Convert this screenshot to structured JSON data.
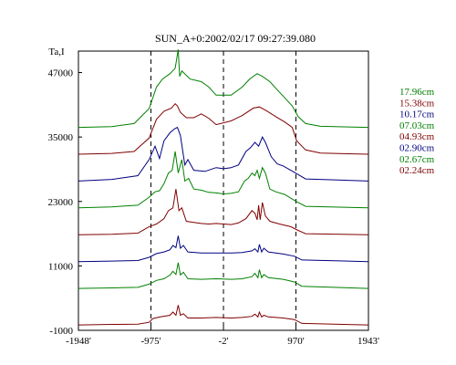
{
  "chart_data": {
    "type": "line",
    "title": "SUN_A+0:2002/02/17 09:27:39.080",
    "ylabel": "Ta,I",
    "xlim": [
      -1948,
      1943
    ],
    "ylim": [
      -1000,
      51000
    ],
    "x_ticks": [
      "-1948'",
      "-975'",
      "-2'",
      "970'",
      "1943'"
    ],
    "x_tick_values": [
      -1948,
      -975,
      -2,
      970,
      1943
    ],
    "y_ticks": [
      "47000",
      "35000",
      "23000",
      "11000",
      "-1000"
    ],
    "y_tick_values": [
      47000,
      35000,
      23000,
      11000,
      -1000
    ],
    "dashed_lines_x": [
      -975,
      -2,
      970
    ],
    "grid": false,
    "legend_placement": "right",
    "series": [
      {
        "name": "17.96cm",
        "color": "#008000",
        "base": 36800,
        "points": [
          [
            -1948,
            0
          ],
          [
            -1500,
            150
          ],
          [
            -1200,
            700
          ],
          [
            -1000,
            3500
          ],
          [
            -900,
            7500
          ],
          [
            -820,
            9000
          ],
          [
            -720,
            10000
          ],
          [
            -650,
            11000
          ],
          [
            -610,
            14500
          ],
          [
            -590,
            9500
          ],
          [
            -560,
            10500
          ],
          [
            -450,
            9000
          ],
          [
            -300,
            8500
          ],
          [
            -200,
            7500
          ],
          [
            -100,
            6000
          ],
          [
            100,
            6000
          ],
          [
            250,
            7500
          ],
          [
            350,
            9000
          ],
          [
            450,
            10000
          ],
          [
            520,
            9500
          ],
          [
            620,
            8500
          ],
          [
            720,
            7000
          ],
          [
            820,
            5500
          ],
          [
            920,
            4000
          ],
          [
            1000,
            2000
          ],
          [
            1100,
            700
          ],
          [
            1300,
            200
          ],
          [
            1943,
            0
          ]
        ]
      },
      {
        "name": "15.38cm",
        "color": "#800000",
        "base": 31800,
        "points": [
          [
            -1948,
            0
          ],
          [
            -1500,
            150
          ],
          [
            -1200,
            500
          ],
          [
            -1000,
            3000
          ],
          [
            -900,
            6500
          ],
          [
            -800,
            8000
          ],
          [
            -700,
            8600
          ],
          [
            -650,
            9400
          ],
          [
            -620,
            9000
          ],
          [
            -580,
            7800
          ],
          [
            -500,
            6800
          ],
          [
            -400,
            6800
          ],
          [
            -300,
            7500
          ],
          [
            -200,
            6700
          ],
          [
            -100,
            5500
          ],
          [
            100,
            6200
          ],
          [
            250,
            7200
          ],
          [
            400,
            8600
          ],
          [
            480,
            8800
          ],
          [
            560,
            8200
          ],
          [
            700,
            7000
          ],
          [
            820,
            6000
          ],
          [
            920,
            5000
          ],
          [
            980,
            2500
          ],
          [
            1100,
            800
          ],
          [
            1300,
            200
          ],
          [
            1943,
            0
          ]
        ]
      },
      {
        "name": "10.17cm",
        "color": "#000080",
        "base": 26800,
        "points": [
          [
            -1948,
            0
          ],
          [
            -1500,
            300
          ],
          [
            -1150,
            1000
          ],
          [
            -1000,
            4000
          ],
          [
            -920,
            6500
          ],
          [
            -860,
            4200
          ],
          [
            -800,
            7500
          ],
          [
            -720,
            9000
          ],
          [
            -660,
            9700
          ],
          [
            -620,
            10000
          ],
          [
            -580,
            8500
          ],
          [
            -520,
            3000
          ],
          [
            -480,
            4000
          ],
          [
            -400,
            2000
          ],
          [
            -250,
            1800
          ],
          [
            -100,
            2500
          ],
          [
            0,
            2300
          ],
          [
            100,
            2500
          ],
          [
            200,
            3000
          ],
          [
            300,
            5500
          ],
          [
            360,
            6200
          ],
          [
            420,
            7200
          ],
          [
            470,
            6500
          ],
          [
            520,
            8200
          ],
          [
            560,
            7200
          ],
          [
            640,
            4500
          ],
          [
            720,
            3200
          ],
          [
            800,
            2800
          ],
          [
            900,
            2000
          ],
          [
            1000,
            1200
          ],
          [
            1100,
            400
          ],
          [
            1943,
            0
          ]
        ]
      },
      {
        "name": "07.03cm",
        "color": "#008000",
        "base": 21800,
        "points": [
          [
            -1948,
            0
          ],
          [
            -1500,
            200
          ],
          [
            -1150,
            500
          ],
          [
            -1000,
            2000
          ],
          [
            -920,
            3000
          ],
          [
            -860,
            3200
          ],
          [
            -800,
            4500
          ],
          [
            -740,
            6500
          ],
          [
            -690,
            7000
          ],
          [
            -650,
            10500
          ],
          [
            -610,
            6500
          ],
          [
            -560,
            9000
          ],
          [
            -520,
            5000
          ],
          [
            -470,
            5500
          ],
          [
            -400,
            3500
          ],
          [
            -300,
            3300
          ],
          [
            -200,
            2900
          ],
          [
            -100,
            2800
          ],
          [
            0,
            2600
          ],
          [
            100,
            2700
          ],
          [
            200,
            3000
          ],
          [
            280,
            5000
          ],
          [
            330,
            5500
          ],
          [
            380,
            6500
          ],
          [
            420,
            6000
          ],
          [
            450,
            7000
          ],
          [
            480,
            5500
          ],
          [
            520,
            7500
          ],
          [
            560,
            6500
          ],
          [
            620,
            3500
          ],
          [
            700,
            3000
          ],
          [
            820,
            2500
          ],
          [
            900,
            1800
          ],
          [
            1000,
            1000
          ],
          [
            1100,
            300
          ],
          [
            1943,
            0
          ]
        ]
      },
      {
        "name": "04.93cm",
        "color": "#800000",
        "base": 16800,
        "points": [
          [
            -1948,
            0
          ],
          [
            -1500,
            100
          ],
          [
            -1150,
            300
          ],
          [
            -1000,
            1500
          ],
          [
            -900,
            2000
          ],
          [
            -800,
            3000
          ],
          [
            -740,
            4500
          ],
          [
            -680,
            5000
          ],
          [
            -640,
            8500
          ],
          [
            -600,
            4500
          ],
          [
            -560,
            5000
          ],
          [
            -500,
            2500
          ],
          [
            -400,
            2300
          ],
          [
            -300,
            2100
          ],
          [
            -200,
            2000
          ],
          [
            -100,
            2100
          ],
          [
            0,
            2000
          ],
          [
            100,
            1900
          ],
          [
            200,
            2200
          ],
          [
            300,
            3000
          ],
          [
            380,
            4500
          ],
          [
            420,
            4000
          ],
          [
            450,
            2800
          ],
          [
            470,
            5500
          ],
          [
            490,
            2800
          ],
          [
            520,
            6000
          ],
          [
            560,
            3500
          ],
          [
            620,
            2500
          ],
          [
            750,
            2000
          ],
          [
            900,
            1500
          ],
          [
            1000,
            800
          ],
          [
            1100,
            200
          ],
          [
            1943,
            0
          ]
        ]
      },
      {
        "name": "02.90cm",
        "color": "#000080",
        "base": 11800,
        "points": [
          [
            -1948,
            0
          ],
          [
            -1500,
            100
          ],
          [
            -1150,
            200
          ],
          [
            -1000,
            800
          ],
          [
            -900,
            1500
          ],
          [
            -800,
            1800
          ],
          [
            -720,
            2200
          ],
          [
            -680,
            3000
          ],
          [
            -640,
            2600
          ],
          [
            -610,
            4800
          ],
          [
            -580,
            2500
          ],
          [
            -540,
            3000
          ],
          [
            -480,
            1800
          ],
          [
            -300,
            1600
          ],
          [
            -100,
            1600
          ],
          [
            100,
            1600
          ],
          [
            250,
            1700
          ],
          [
            380,
            2000
          ],
          [
            420,
            2400
          ],
          [
            460,
            1800
          ],
          [
            480,
            3200
          ],
          [
            510,
            1800
          ],
          [
            540,
            2500
          ],
          [
            600,
            1800
          ],
          [
            800,
            1400
          ],
          [
            950,
            1000
          ],
          [
            1050,
            300
          ],
          [
            1943,
            0
          ]
        ]
      },
      {
        "name": "02.67cm",
        "color": "#008000",
        "base": 6800,
        "points": [
          [
            -1948,
            0
          ],
          [
            -1500,
            100
          ],
          [
            -1150,
            200
          ],
          [
            -1000,
            800
          ],
          [
            -900,
            1500
          ],
          [
            -800,
            1800
          ],
          [
            -720,
            2500
          ],
          [
            -680,
            3200
          ],
          [
            -640,
            2600
          ],
          [
            -610,
            4800
          ],
          [
            -580,
            2500
          ],
          [
            -540,
            3000
          ],
          [
            -480,
            1800
          ],
          [
            -300,
            1700
          ],
          [
            -100,
            1800
          ],
          [
            100,
            1700
          ],
          [
            250,
            1800
          ],
          [
            380,
            2200
          ],
          [
            420,
            2800
          ],
          [
            460,
            2000
          ],
          [
            480,
            3500
          ],
          [
            510,
            2000
          ],
          [
            540,
            2600
          ],
          [
            600,
            2000
          ],
          [
            800,
            1700
          ],
          [
            950,
            1200
          ],
          [
            1050,
            400
          ],
          [
            1943,
            0
          ]
        ]
      },
      {
        "name": "02.24cm",
        "color": "#800000",
        "base": 0,
        "points": [
          [
            -1948,
            0
          ],
          [
            -1500,
            100
          ],
          [
            -1150,
            150
          ],
          [
            -1000,
            500
          ],
          [
            -950,
            1200
          ],
          [
            -850,
            1500
          ],
          [
            -720,
            1800
          ],
          [
            -680,
            2400
          ],
          [
            -640,
            1800
          ],
          [
            -610,
            3700
          ],
          [
            -580,
            1800
          ],
          [
            -540,
            2100
          ],
          [
            -480,
            1300
          ],
          [
            -300,
            1300
          ],
          [
            -100,
            1400
          ],
          [
            100,
            1300
          ],
          [
            250,
            1400
          ],
          [
            380,
            1600
          ],
          [
            420,
            2000
          ],
          [
            460,
            1500
          ],
          [
            480,
            2400
          ],
          [
            510,
            1500
          ],
          [
            540,
            1800
          ],
          [
            600,
            1500
          ],
          [
            800,
            1300
          ],
          [
            950,
            1000
          ],
          [
            1050,
            300
          ],
          [
            1943,
            0
          ]
        ]
      }
    ]
  }
}
